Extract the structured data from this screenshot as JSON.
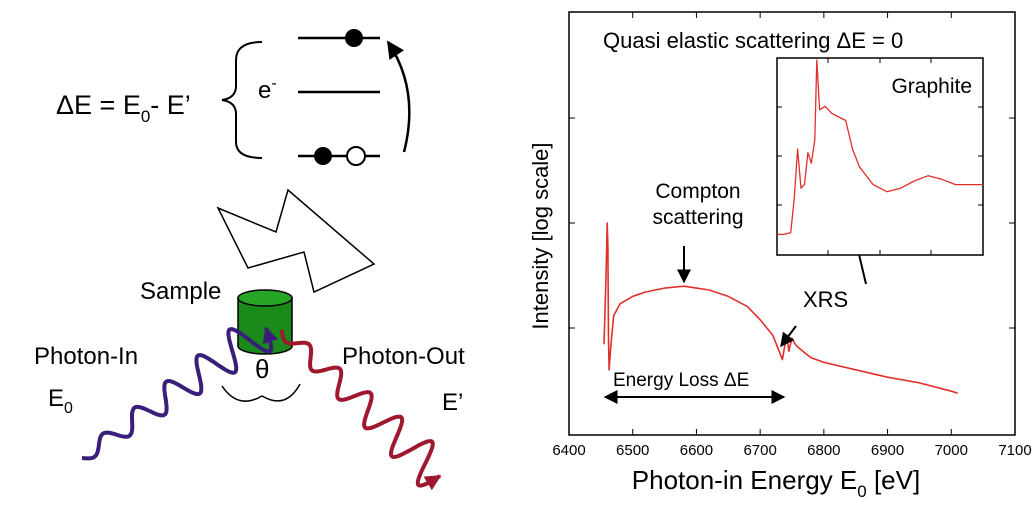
{
  "diagram": {
    "energy_equation": {
      "delta_e": "ΔE = E",
      "sub0": "0",
      "minus": "- E’"
    },
    "electron_label": "e",
    "electron_sup": "-",
    "sample_label": "Sample",
    "photon_in_label": "Photon-In",
    "e0_base": "E",
    "e0_sub": "0",
    "photon_out_label": "Photon-Out",
    "e_prime_label": "E’",
    "angle_label": "θ"
  },
  "colors": {
    "photon_in": "#3a1f7a",
    "photon_out": "#a0182e",
    "sample": "#1a8a1a",
    "spectrum": "#e0302a"
  },
  "chart_data": [
    {
      "type": "line",
      "title": "Quasi elastic scattering ΔE = 0",
      "xlabel_base": "Photon-in Energy E",
      "xlabel_sub": "0",
      "xlabel_unit": " [eV]",
      "ylabel": "Intensity  [log scale]",
      "xlim": [
        6400,
        7100
      ],
      "x_ticks": [
        "6400",
        "6500",
        "6600",
        "6700",
        "6800",
        "6900",
        "7000",
        "7100"
      ],
      "y_scale": "log",
      "annotations": {
        "compton": [
          "Compton",
          "scattering"
        ],
        "xrs": "XRS",
        "energy_loss": "Energy Loss ΔE"
      },
      "x": [
        6455,
        6458,
        6460,
        6461,
        6462,
        6463,
        6465,
        6470,
        6480,
        6500,
        6520,
        6550,
        6580,
        6600,
        6620,
        6650,
        6680,
        6700,
        6720,
        6735,
        6740,
        6742,
        6745,
        6750,
        6755,
        6760,
        6770,
        6780,
        6800,
        6850,
        6900,
        6950,
        7000,
        7010
      ],
      "y": [
        0.07,
        0.3,
        1.0,
        0.6,
        0.08,
        0.04,
        0.06,
        0.13,
        0.17,
        0.2,
        0.22,
        0.24,
        0.25,
        0.24,
        0.23,
        0.2,
        0.16,
        0.12,
        0.085,
        0.05,
        0.075,
        0.085,
        0.06,
        0.08,
        0.07,
        0.065,
        0.058,
        0.052,
        0.047,
        0.04,
        0.034,
        0.03,
        0.025,
        0.024
      ]
    },
    {
      "type": "line",
      "title": "Graphite",
      "x": [
        6760,
        6770,
        6780,
        6785,
        6790,
        6795,
        6800,
        6805,
        6810,
        6815,
        6818,
        6822,
        6830,
        6840,
        6850,
        6860,
        6870,
        6880,
        6900,
        6920,
        6940,
        6960,
        6980,
        7000,
        7020,
        7040,
        7060
      ],
      "y": [
        0.02,
        0.02,
        0.03,
        0.22,
        0.5,
        0.28,
        0.3,
        0.48,
        0.42,
        0.55,
        1.0,
        0.72,
        0.74,
        0.7,
        0.68,
        0.66,
        0.5,
        0.4,
        0.3,
        0.26,
        0.28,
        0.32,
        0.35,
        0.33,
        0.3,
        0.3,
        0.3
      ]
    }
  ]
}
